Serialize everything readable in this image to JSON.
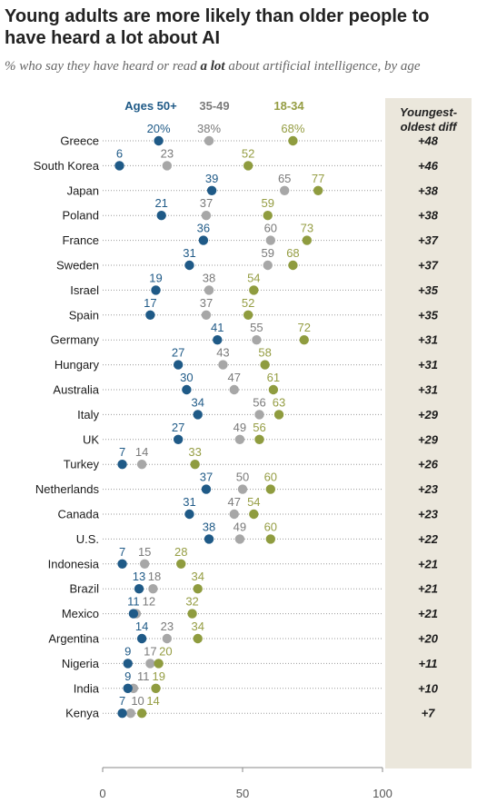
{
  "title": "Young adults are more likely than older people to have heard a lot about AI",
  "subtitle": {
    "before": "% who say they have heard or read ",
    "emphasis": "a lot",
    "after": " about artificial intelligence, by age"
  },
  "diff_header": "Youngest-oldest diff",
  "colors": {
    "ages_50_plus": "#1f5a87",
    "ages_35_49": "#a7a7a7",
    "ages_18_34": "#8f9c3f",
    "label_35_49": "#7a7a7a",
    "label_18_34": "#959d43",
    "panel": "#ebe7dc",
    "dotted_line": "#9a9a9a"
  },
  "chart_data": {
    "type": "scatter",
    "title": "Young adults are more likely than older people to have heard a lot about AI",
    "xlim": [
      0,
      100
    ],
    "x_ticks": [
      0,
      50,
      100
    ],
    "legend_placement": "top",
    "categories": [
      "Greece",
      "South Korea",
      "Japan",
      "Poland",
      "France",
      "Sweden",
      "Israel",
      "Spain",
      "Germany",
      "Hungary",
      "Australia",
      "Italy",
      "UK",
      "Turkey",
      "Netherlands",
      "Canada",
      "U.S.",
      "Indonesia",
      "Brazil",
      "Mexico",
      "Argentina",
      "Nigeria",
      "India",
      "Kenya"
    ],
    "series": [
      {
        "name": "Ages 50+",
        "values": [
          20,
          6,
          39,
          21,
          36,
          31,
          19,
          17,
          41,
          27,
          30,
          34,
          27,
          7,
          37,
          31,
          38,
          7,
          13,
          11,
          14,
          9,
          9,
          7
        ]
      },
      {
        "name": "35-49",
        "values": [
          38,
          23,
          65,
          37,
          60,
          59,
          38,
          37,
          55,
          43,
          47,
          56,
          49,
          14,
          50,
          47,
          49,
          15,
          18,
          12,
          23,
          17,
          11,
          10
        ]
      },
      {
        "name": "18-34",
        "values": [
          68,
          52,
          77,
          59,
          73,
          68,
          54,
          52,
          72,
          58,
          61,
          63,
          56,
          33,
          60,
          54,
          60,
          28,
          34,
          32,
          34,
          20,
          19,
          14
        ]
      }
    ],
    "value_labels": {
      "Ages 50+": [
        "20%",
        "6",
        "39",
        "21",
        "36",
        "31",
        "19",
        "17",
        "41",
        "27",
        "30",
        "34",
        "27",
        "7",
        "37",
        "31",
        "38",
        "7",
        "13",
        "11",
        "14",
        "9",
        "9",
        "7"
      ],
      "35-49": [
        "38%",
        "23",
        "65",
        "37",
        "60",
        "59",
        "38",
        "37",
        "55",
        "43",
        "47",
        "56",
        "49",
        "14",
        "50",
        "47",
        "49",
        "15",
        "18",
        "12",
        "23",
        "17",
        "11",
        "10"
      ],
      "18-34": [
        "68%",
        "52",
        "77",
        "59",
        "73",
        "68",
        "54",
        "52",
        "72",
        "58",
        "61",
        "63",
        "56",
        "33",
        "60",
        "54",
        "60",
        "28",
        "34",
        "32",
        "34",
        "20",
        "19",
        "14"
      ]
    },
    "diffs": [
      "+48",
      "+46",
      "+38",
      "+38",
      "+37",
      "+37",
      "+35",
      "+35",
      "+31",
      "+31",
      "+31",
      "+29",
      "+29",
      "+26",
      "+23",
      "+23",
      "+22",
      "+21",
      "+21",
      "+21",
      "+20",
      "+11",
      "+10",
      "+7"
    ]
  }
}
